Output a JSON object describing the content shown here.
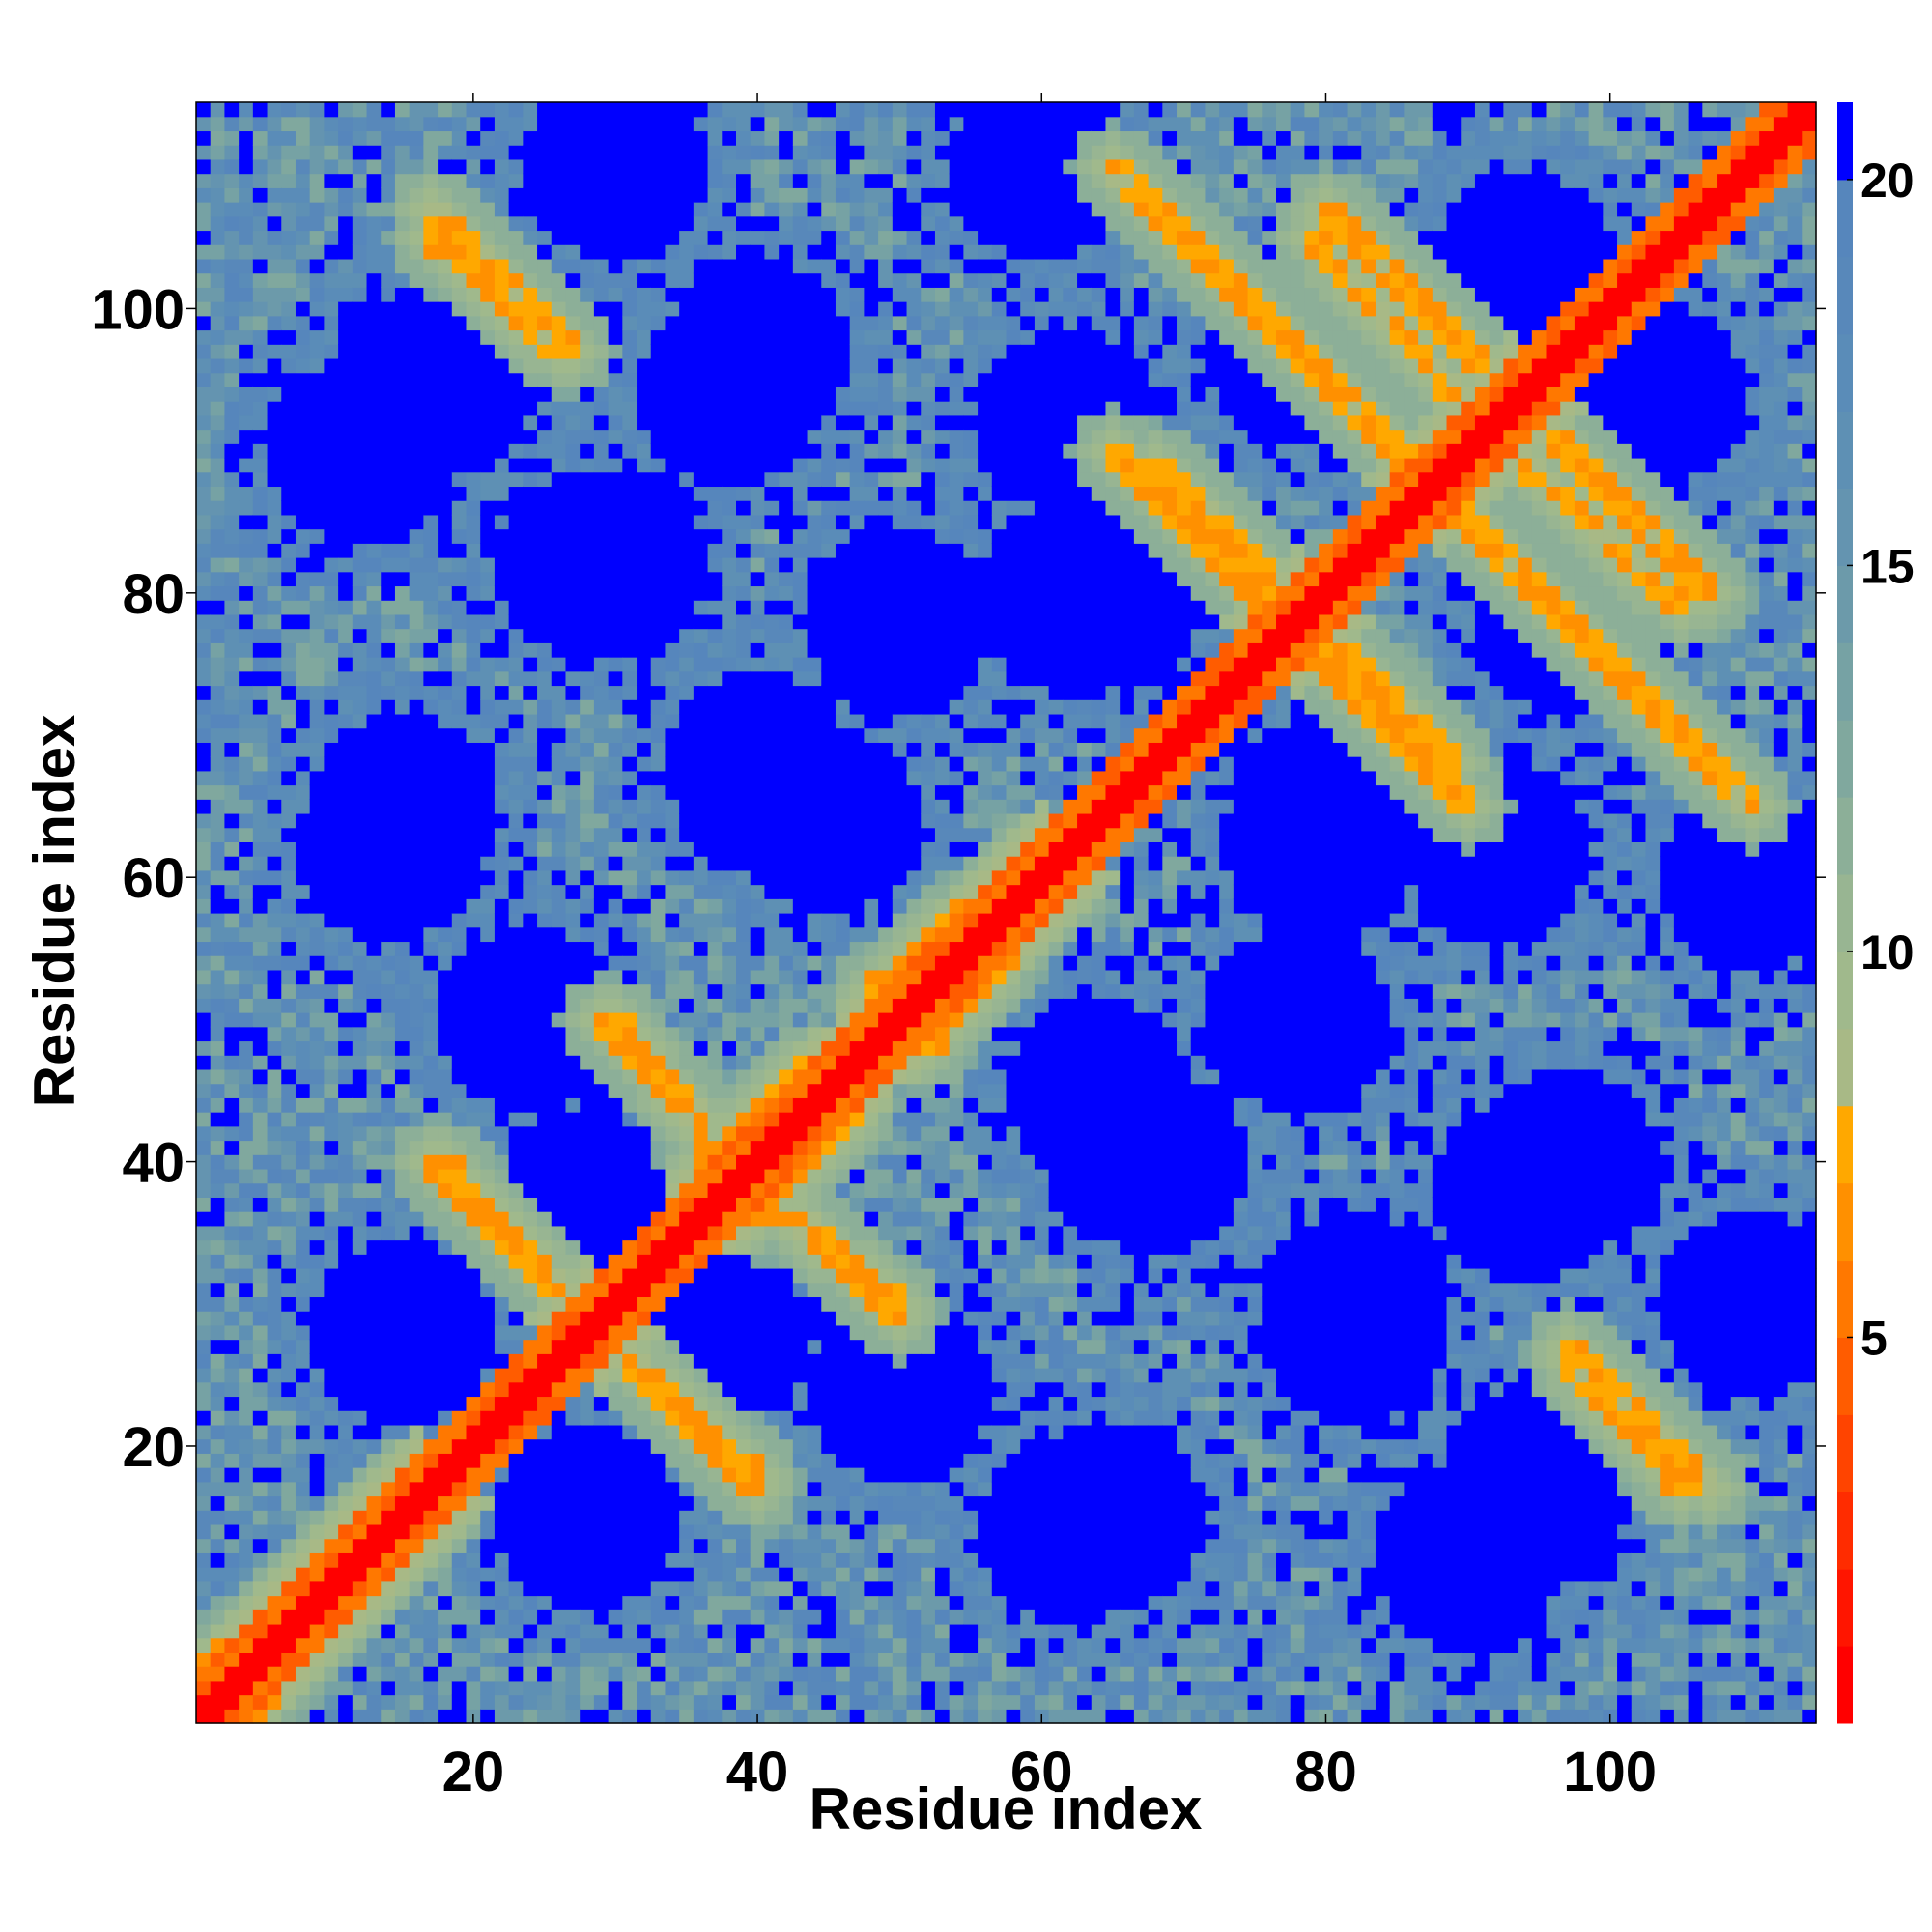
{
  "chart_data": {
    "type": "heatmap",
    "title": "",
    "xlabel": "Residue index",
    "ylabel": "Residue index",
    "x_range": [
      1,
      114
    ],
    "y_range": [
      1,
      114
    ],
    "x_ticks": [
      20,
      40,
      60,
      80,
      100
    ],
    "y_ticks": [
      20,
      40,
      60,
      80,
      100
    ],
    "n_residues": 114,
    "value_unit": "",
    "colorbar": {
      "range": [
        0,
        21
      ],
      "ticks": [
        5,
        10,
        15,
        20
      ],
      "bins": [
        {
          "min": 0,
          "max": 1,
          "color": "#ff0000"
        },
        {
          "min": 1,
          "max": 2,
          "color": "#ff1500"
        },
        {
          "min": 2,
          "max": 3,
          "color": "#ff2c00"
        },
        {
          "min": 3,
          "max": 4,
          "color": "#ff4400"
        },
        {
          "min": 4,
          "max": 5,
          "color": "#ff5c00"
        },
        {
          "min": 5,
          "max": 6,
          "color": "#ff7800"
        },
        {
          "min": 6,
          "max": 7,
          "color": "#ff9000"
        },
        {
          "min": 7,
          "max": 8,
          "color": "#ffa800"
        },
        {
          "min": 8,
          "max": 9,
          "color": "#a8b986"
        },
        {
          "min": 9,
          "max": 10,
          "color": "#a0b98c"
        },
        {
          "min": 10,
          "max": 11,
          "color": "#98b592"
        },
        {
          "min": 11,
          "max": 12,
          "color": "#8caf98"
        },
        {
          "min": 12,
          "max": 13,
          "color": "#80a89e"
        },
        {
          "min": 13,
          "max": 14,
          "color": "#76a2a4"
        },
        {
          "min": 14,
          "max": 15,
          "color": "#6c9aaa"
        },
        {
          "min": 15,
          "max": 16,
          "color": "#6494b0"
        },
        {
          "min": 16,
          "max": 17,
          "color": "#5e90b4"
        },
        {
          "min": 17,
          "max": 18,
          "color": "#5a8cb8"
        },
        {
          "min": 18,
          "max": 19,
          "color": "#5888ba"
        },
        {
          "min": 19,
          "max": 20,
          "color": "#5686bc"
        },
        {
          "min": 20,
          "max": 21,
          "color": "#0000ff"
        }
      ]
    },
    "structure": {
      "description_values": "Symmetric residue-residue distance map; diagonal values near 0, off-diagonal contacts ~6-8, background mostly >=20",
      "anti_diagonal_contacts": [
        {
          "i_start": 17,
          "j_start": 107,
          "i_end": 27,
          "j_end": 97
        },
        {
          "i_start": 86,
          "j_start": 89,
          "i_end": 110,
          "j_end": 65
        },
        {
          "i_start": 80,
          "j_start": 107,
          "i_end": 91,
          "j_end": 96
        },
        {
          "i_start": 68,
          "j_start": 89,
          "i_end": 76,
          "j_end": 81
        },
        {
          "i_start": 79,
          "j_start": 76,
          "i_end": 90,
          "j_end": 65
        },
        {
          "i_start": 94,
          "j_start": 89,
          "i_end": 105,
          "j_end": 79
        },
        {
          "i_start": 97,
          "j_start": 26,
          "i_end": 105,
          "j_end": 17
        },
        {
          "i_start": 18,
          "j_start": 40,
          "i_end": 26,
          "j_end": 31
        },
        {
          "i_start": 30,
          "j_start": 50,
          "i_end": 36,
          "j_end": 42
        },
        {
          "i_start": 32,
          "j_start": 25,
          "i_end": 40,
          "j_end": 17
        },
        {
          "i_start": 43,
          "j_start": 36,
          "i_end": 50,
          "j_end": 29
        }
      ],
      "parallel_contacts": [
        {
          "i_start": 48,
          "j_start": 52,
          "i_end": 60,
          "j_end": 62
        },
        {
          "i_start": 1,
          "j_start": 4,
          "i_end": 16,
          "j_end": 18
        },
        {
          "i_start": 36,
          "j_start": 40,
          "i_end": 44,
          "j_end": 47
        }
      ],
      "voids": [
        {
          "i": 16,
          "j": 94
        },
        {
          "i": 38,
          "j": 94
        },
        {
          "i": 62,
          "j": 92
        },
        {
          "i": 85,
          "j": 94
        },
        {
          "i": 103,
          "j": 94
        },
        {
          "i": 28,
          "j": 82
        },
        {
          "i": 65,
          "j": 80
        },
        {
          "i": 97,
          "j": 78
        },
        {
          "i": 15,
          "j": 65
        },
        {
          "i": 45,
          "j": 64
        },
        {
          "i": 80,
          "j": 62
        },
        {
          "i": 110,
          "j": 60
        },
        {
          "i": 68,
          "j": 40
        },
        {
          "i": 97,
          "j": 40
        },
        {
          "i": 15,
          "j": 28
        },
        {
          "i": 37,
          "j": 28
        },
        {
          "i": 82,
          "j": 30
        },
        {
          "i": 110,
          "j": 30
        },
        {
          "i": 28,
          "j": 15
        },
        {
          "i": 62,
          "j": 14
        },
        {
          "i": 90,
          "j": 12
        },
        {
          "i": 95,
          "j": 18
        },
        {
          "i": 50,
          "j": 24
        },
        {
          "i": 78,
          "j": 50
        }
      ]
    }
  }
}
